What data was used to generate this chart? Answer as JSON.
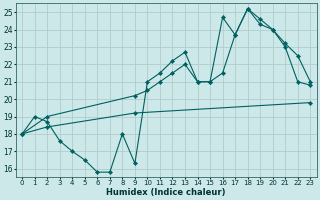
{
  "xlabel": "Humidex (Indice chaleur)",
  "ylabel": "",
  "bg_color": "#cde8e8",
  "grid_color": "#b0cccc",
  "line_color": "#006060",
  "xlim": [
    -0.5,
    23.5
  ],
  "ylim": [
    15.5,
    25.5
  ],
  "xticks": [
    0,
    1,
    2,
    3,
    4,
    5,
    6,
    7,
    8,
    9,
    10,
    11,
    12,
    13,
    14,
    15,
    16,
    17,
    18,
    19,
    20,
    21,
    22,
    23
  ],
  "yticks": [
    16,
    17,
    18,
    19,
    20,
    21,
    22,
    23,
    24,
    25
  ],
  "line1_x": [
    0,
    1,
    2,
    3,
    4,
    5,
    6,
    7,
    8,
    9,
    10,
    11,
    12,
    13,
    14,
    15,
    16,
    17,
    18,
    19,
    20,
    21,
    22,
    23
  ],
  "line1_y": [
    18.0,
    19.0,
    18.7,
    17.6,
    17.0,
    16.5,
    15.8,
    15.8,
    18.0,
    16.3,
    21.0,
    21.5,
    22.2,
    22.7,
    21.0,
    21.0,
    24.7,
    23.7,
    25.2,
    24.6,
    24.0,
    23.0,
    21.0,
    20.8
  ],
  "line2_x": [
    0,
    2,
    9,
    10,
    11,
    12,
    13,
    14,
    15,
    16,
    17,
    18,
    19,
    20,
    21,
    22,
    23
  ],
  "line2_y": [
    18.0,
    19.0,
    20.2,
    20.5,
    21.0,
    21.5,
    22.0,
    21.0,
    21.0,
    21.5,
    23.7,
    25.2,
    24.3,
    24.0,
    23.2,
    22.5,
    21.0
  ],
  "line3_x": [
    0,
    2,
    9,
    23
  ],
  "line3_y": [
    18.0,
    18.4,
    19.2,
    19.8
  ]
}
